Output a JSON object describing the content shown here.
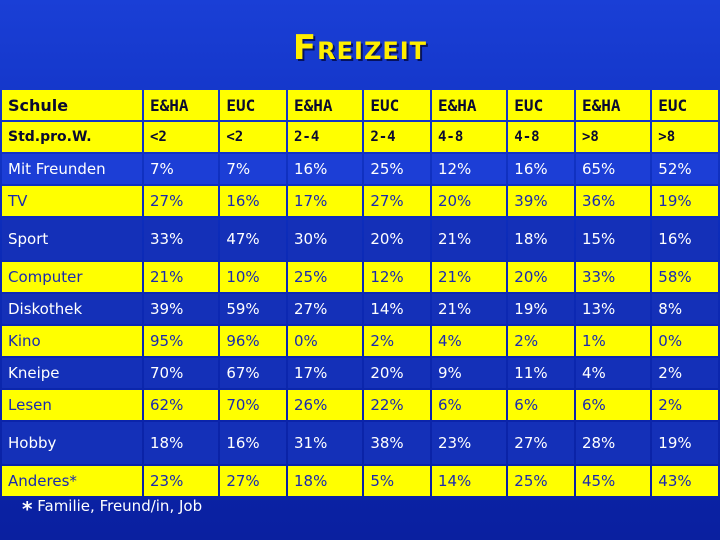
{
  "title": "Freizeit",
  "header": {
    "label": "Schule",
    "cols": [
      "E&HA",
      "EUC",
      "E&HA",
      "EUC",
      "E&HA",
      "EUC",
      "E&HA",
      "EUC"
    ]
  },
  "subheader": {
    "label": "Std.pro.W.",
    "cols": [
      "<2",
      "<2",
      "2-4",
      "2-4",
      "4-8",
      "4-8",
      ">8",
      ">8"
    ]
  },
  "rows": [
    {
      "label": "Mit Freunden",
      "values": [
        "7%",
        "7%",
        "16%",
        "25%",
        "12%",
        "16%",
        "65%",
        "52%"
      ]
    },
    {
      "label": "TV",
      "values": [
        "27%",
        "16%",
        "17%",
        "27%",
        "20%",
        "39%",
        "36%",
        "19%"
      ]
    },
    {
      "label": "Sport",
      "values": [
        "33%",
        "47%",
        "30%",
        "20%",
        "21%",
        "18%",
        "15%",
        "16%"
      ]
    },
    {
      "label": "Computer",
      "values": [
        "21%",
        "10%",
        "25%",
        "12%",
        "21%",
        "20%",
        "33%",
        "58%"
      ]
    },
    {
      "label": "Diskothek",
      "values": [
        "39%",
        "59%",
        "27%",
        "14%",
        "21%",
        "19%",
        "13%",
        "8%"
      ]
    },
    {
      "label": "Kino",
      "values": [
        "95%",
        "96%",
        "0%",
        "2%",
        "4%",
        "2%",
        "1%",
        "0%"
      ]
    },
    {
      "label": "Kneipe",
      "values": [
        "70%",
        "67%",
        "17%",
        "20%",
        "9%",
        "11%",
        "4%",
        "2%"
      ]
    },
    {
      "label": "Lesen",
      "values": [
        "62%",
        "70%",
        "26%",
        "22%",
        "6%",
        "6%",
        "6%",
        "2%"
      ]
    },
    {
      "label": "Hobby",
      "values": [
        "18%",
        "16%",
        "31%",
        "38%",
        "23%",
        "27%",
        "28%",
        "19%"
      ]
    },
    {
      "label": "Anderes*",
      "values": [
        "23%",
        "27%",
        "18%",
        "5%",
        "14%",
        "25%",
        "45%",
        "43%"
      ]
    }
  ],
  "footnote": {
    "star": "*",
    "text": "Familie, Freund/in, Job"
  }
}
